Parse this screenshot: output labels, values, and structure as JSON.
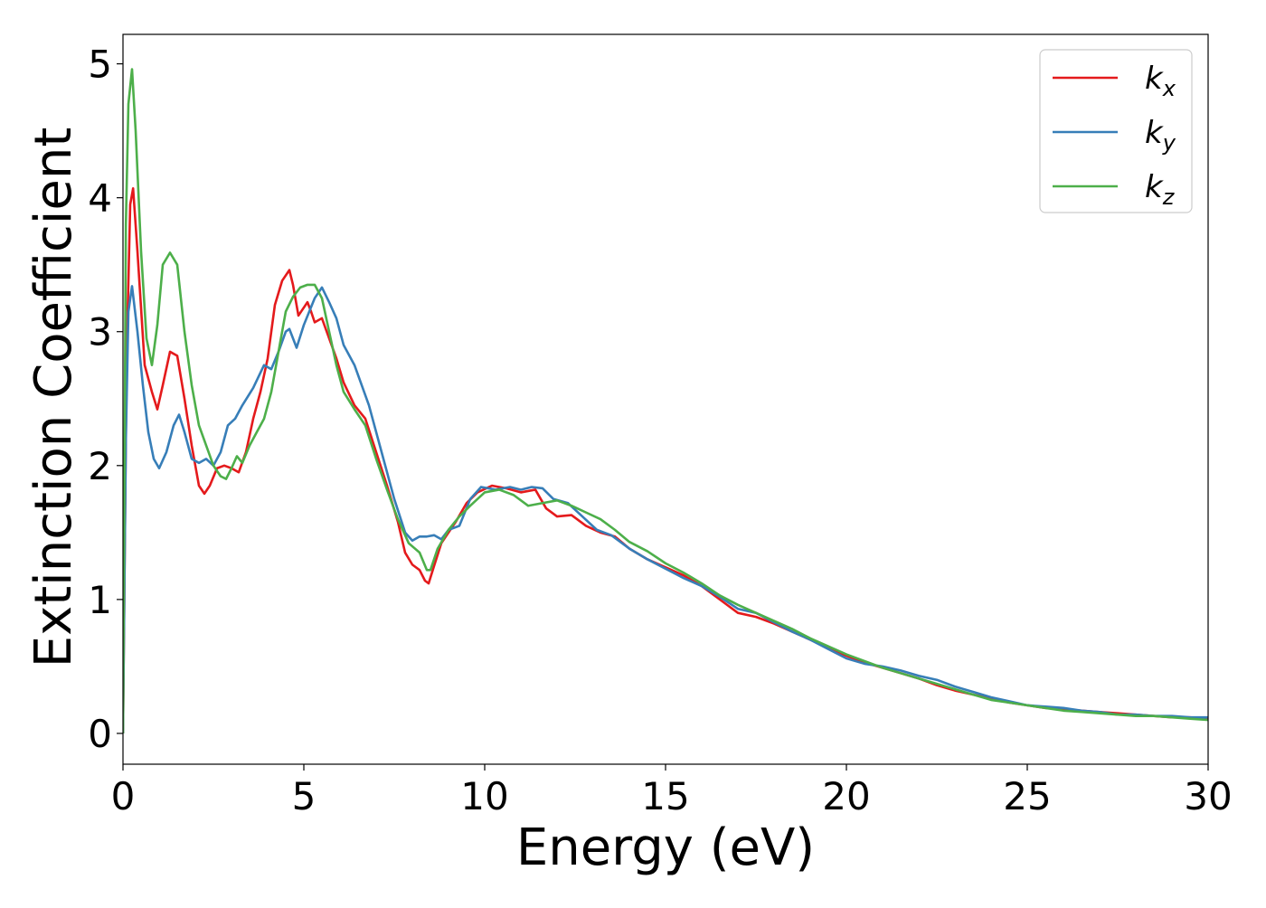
{
  "chart_data": {
    "type": "line",
    "title": "",
    "xlabel": "Energy (eV)",
    "ylabel": "Extinction Coefficient",
    "xlim": [
      0,
      30
    ],
    "ylim": [
      -0.23,
      5.22
    ],
    "xticks": [
      0,
      5,
      10,
      15,
      20,
      25,
      30
    ],
    "yticks": [
      0,
      1,
      2,
      3,
      4,
      5
    ],
    "grid": false,
    "legend": "top-right",
    "series": [
      {
        "name": "k_x",
        "label_main": "k",
        "label_sub": "x",
        "color": "#e41a1c",
        "points": [
          [
            0,
            0
          ],
          [
            0.1,
            2.8
          ],
          [
            0.2,
            3.95
          ],
          [
            0.28,
            4.07
          ],
          [
            0.4,
            3.6
          ],
          [
            0.6,
            2.75
          ],
          [
            0.8,
            2.55
          ],
          [
            0.95,
            2.42
          ],
          [
            1.1,
            2.6
          ],
          [
            1.3,
            2.85
          ],
          [
            1.5,
            2.82
          ],
          [
            1.7,
            2.5
          ],
          [
            1.9,
            2.15
          ],
          [
            2.1,
            1.85
          ],
          [
            2.25,
            1.79
          ],
          [
            2.4,
            1.85
          ],
          [
            2.6,
            1.98
          ],
          [
            2.8,
            2.0
          ],
          [
            3.0,
            1.98
          ],
          [
            3.2,
            1.95
          ],
          [
            3.4,
            2.1
          ],
          [
            3.6,
            2.35
          ],
          [
            3.8,
            2.55
          ],
          [
            4.0,
            2.8
          ],
          [
            4.2,
            3.2
          ],
          [
            4.4,
            3.38
          ],
          [
            4.6,
            3.46
          ],
          [
            4.7,
            3.35
          ],
          [
            4.85,
            3.12
          ],
          [
            5.0,
            3.18
          ],
          [
            5.1,
            3.22
          ],
          [
            5.2,
            3.15
          ],
          [
            5.3,
            3.07
          ],
          [
            5.5,
            3.1
          ],
          [
            5.7,
            2.95
          ],
          [
            5.9,
            2.8
          ],
          [
            6.1,
            2.62
          ],
          [
            6.4,
            2.45
          ],
          [
            6.7,
            2.35
          ],
          [
            7.0,
            2.1
          ],
          [
            7.3,
            1.85
          ],
          [
            7.6,
            1.58
          ],
          [
            7.8,
            1.35
          ],
          [
            8.0,
            1.26
          ],
          [
            8.2,
            1.22
          ],
          [
            8.35,
            1.14
          ],
          [
            8.45,
            1.12
          ],
          [
            8.6,
            1.25
          ],
          [
            8.8,
            1.42
          ],
          [
            9.0,
            1.5
          ],
          [
            9.2,
            1.58
          ],
          [
            9.5,
            1.72
          ],
          [
            9.8,
            1.8
          ],
          [
            10.2,
            1.85
          ],
          [
            10.6,
            1.83
          ],
          [
            11.0,
            1.8
          ],
          [
            11.4,
            1.82
          ],
          [
            11.7,
            1.68
          ],
          [
            12.0,
            1.62
          ],
          [
            12.4,
            1.63
          ],
          [
            12.8,
            1.55
          ],
          [
            13.2,
            1.5
          ],
          [
            13.6,
            1.47
          ],
          [
            14.0,
            1.38
          ],
          [
            14.5,
            1.3
          ],
          [
            15.0,
            1.24
          ],
          [
            15.5,
            1.18
          ],
          [
            16.0,
            1.1
          ],
          [
            16.5,
            1.0
          ],
          [
            17.0,
            0.9
          ],
          [
            17.5,
            0.87
          ],
          [
            18.0,
            0.82
          ],
          [
            18.5,
            0.76
          ],
          [
            19.0,
            0.7
          ],
          [
            19.5,
            0.64
          ],
          [
            20.0,
            0.58
          ],
          [
            20.5,
            0.53
          ],
          [
            21.0,
            0.49
          ],
          [
            21.5,
            0.45
          ],
          [
            22.0,
            0.41
          ],
          [
            22.5,
            0.36
          ],
          [
            23.0,
            0.32
          ],
          [
            23.5,
            0.29
          ],
          [
            24.0,
            0.26
          ],
          [
            24.5,
            0.23
          ],
          [
            25.0,
            0.21
          ],
          [
            25.5,
            0.19
          ],
          [
            26.0,
            0.18
          ],
          [
            26.5,
            0.17
          ],
          [
            27.0,
            0.16
          ],
          [
            27.5,
            0.15
          ],
          [
            28.0,
            0.14
          ],
          [
            28.5,
            0.13
          ],
          [
            29.0,
            0.12
          ],
          [
            29.5,
            0.12
          ],
          [
            30.0,
            0.11
          ]
        ]
      },
      {
        "name": "k_y",
        "label_main": "k",
        "label_sub": "y",
        "color": "#377eb8",
        "points": [
          [
            0,
            0
          ],
          [
            0.08,
            2.2
          ],
          [
            0.15,
            3.15
          ],
          [
            0.25,
            3.34
          ],
          [
            0.4,
            3.0
          ],
          [
            0.55,
            2.6
          ],
          [
            0.7,
            2.25
          ],
          [
            0.85,
            2.05
          ],
          [
            1.0,
            1.98
          ],
          [
            1.2,
            2.1
          ],
          [
            1.4,
            2.3
          ],
          [
            1.55,
            2.38
          ],
          [
            1.7,
            2.25
          ],
          [
            1.9,
            2.05
          ],
          [
            2.1,
            2.02
          ],
          [
            2.3,
            2.05
          ],
          [
            2.5,
            2.0
          ],
          [
            2.7,
            2.1
          ],
          [
            2.9,
            2.3
          ],
          [
            3.1,
            2.35
          ],
          [
            3.3,
            2.45
          ],
          [
            3.6,
            2.58
          ],
          [
            3.9,
            2.75
          ],
          [
            4.1,
            2.72
          ],
          [
            4.3,
            2.85
          ],
          [
            4.5,
            3.0
          ],
          [
            4.6,
            3.02
          ],
          [
            4.8,
            2.88
          ],
          [
            5.0,
            3.05
          ],
          [
            5.3,
            3.25
          ],
          [
            5.5,
            3.33
          ],
          [
            5.7,
            3.22
          ],
          [
            5.9,
            3.1
          ],
          [
            6.1,
            2.9
          ],
          [
            6.4,
            2.75
          ],
          [
            6.8,
            2.45
          ],
          [
            7.2,
            2.05
          ],
          [
            7.5,
            1.75
          ],
          [
            7.8,
            1.5
          ],
          [
            8.0,
            1.44
          ],
          [
            8.2,
            1.47
          ],
          [
            8.4,
            1.47
          ],
          [
            8.6,
            1.48
          ],
          [
            8.8,
            1.45
          ],
          [
            9.0,
            1.52
          ],
          [
            9.3,
            1.55
          ],
          [
            9.6,
            1.75
          ],
          [
            9.9,
            1.84
          ],
          [
            10.3,
            1.82
          ],
          [
            10.7,
            1.84
          ],
          [
            11.0,
            1.82
          ],
          [
            11.3,
            1.84
          ],
          [
            11.6,
            1.83
          ],
          [
            11.9,
            1.75
          ],
          [
            12.3,
            1.72
          ],
          [
            12.7,
            1.62
          ],
          [
            13.1,
            1.52
          ],
          [
            13.5,
            1.48
          ],
          [
            14.0,
            1.38
          ],
          [
            14.5,
            1.3
          ],
          [
            15.0,
            1.23
          ],
          [
            15.5,
            1.16
          ],
          [
            16.0,
            1.1
          ],
          [
            16.5,
            1.02
          ],
          [
            17.0,
            0.93
          ],
          [
            17.5,
            0.9
          ],
          [
            18.0,
            0.83
          ],
          [
            18.5,
            0.76
          ],
          [
            19.0,
            0.7
          ],
          [
            19.5,
            0.63
          ],
          [
            20.0,
            0.56
          ],
          [
            20.5,
            0.52
          ],
          [
            21.0,
            0.5
          ],
          [
            21.5,
            0.47
          ],
          [
            22.0,
            0.43
          ],
          [
            22.5,
            0.4
          ],
          [
            23.0,
            0.35
          ],
          [
            23.5,
            0.31
          ],
          [
            24.0,
            0.27
          ],
          [
            24.5,
            0.24
          ],
          [
            25.0,
            0.21
          ],
          [
            25.5,
            0.2
          ],
          [
            26.0,
            0.19
          ],
          [
            26.5,
            0.17
          ],
          [
            27.0,
            0.16
          ],
          [
            27.5,
            0.14
          ],
          [
            28.0,
            0.14
          ],
          [
            28.5,
            0.13
          ],
          [
            29.0,
            0.13
          ],
          [
            29.5,
            0.12
          ],
          [
            30.0,
            0.12
          ]
        ]
      },
      {
        "name": "k_z",
        "label_main": "k",
        "label_sub": "z",
        "color": "#4daf4a",
        "points": [
          [
            0,
            0
          ],
          [
            0.08,
            3.8
          ],
          [
            0.15,
            4.7
          ],
          [
            0.25,
            4.96
          ],
          [
            0.35,
            4.5
          ],
          [
            0.5,
            3.6
          ],
          [
            0.65,
            2.95
          ],
          [
            0.8,
            2.75
          ],
          [
            0.95,
            3.05
          ],
          [
            1.1,
            3.5
          ],
          [
            1.3,
            3.59
          ],
          [
            1.5,
            3.5
          ],
          [
            1.7,
            3.0
          ],
          [
            1.9,
            2.6
          ],
          [
            2.1,
            2.3
          ],
          [
            2.3,
            2.15
          ],
          [
            2.5,
            2.0
          ],
          [
            2.7,
            1.92
          ],
          [
            2.85,
            1.9
          ],
          [
            3.0,
            1.98
          ],
          [
            3.15,
            2.07
          ],
          [
            3.3,
            2.02
          ],
          [
            3.5,
            2.15
          ],
          [
            3.7,
            2.25
          ],
          [
            3.9,
            2.35
          ],
          [
            4.1,
            2.55
          ],
          [
            4.3,
            2.85
          ],
          [
            4.5,
            3.15
          ],
          [
            4.7,
            3.26
          ],
          [
            4.9,
            3.33
          ],
          [
            5.1,
            3.35
          ],
          [
            5.3,
            3.35
          ],
          [
            5.5,
            3.25
          ],
          [
            5.7,
            3.0
          ],
          [
            5.9,
            2.75
          ],
          [
            6.1,
            2.55
          ],
          [
            6.4,
            2.42
          ],
          [
            6.7,
            2.3
          ],
          [
            7.0,
            2.05
          ],
          [
            7.3,
            1.82
          ],
          [
            7.6,
            1.6
          ],
          [
            7.9,
            1.42
          ],
          [
            8.2,
            1.35
          ],
          [
            8.4,
            1.22
          ],
          [
            8.5,
            1.22
          ],
          [
            8.7,
            1.38
          ],
          [
            9.0,
            1.52
          ],
          [
            9.3,
            1.62
          ],
          [
            9.6,
            1.7
          ],
          [
            10.0,
            1.8
          ],
          [
            10.4,
            1.82
          ],
          [
            10.8,
            1.78
          ],
          [
            11.2,
            1.7
          ],
          [
            11.6,
            1.72
          ],
          [
            12.0,
            1.74
          ],
          [
            12.4,
            1.7
          ],
          [
            12.8,
            1.65
          ],
          [
            13.2,
            1.6
          ],
          [
            13.6,
            1.52
          ],
          [
            14.0,
            1.43
          ],
          [
            14.5,
            1.36
          ],
          [
            15.0,
            1.27
          ],
          [
            15.5,
            1.2
          ],
          [
            16.0,
            1.12
          ],
          [
            16.5,
            1.03
          ],
          [
            17.0,
            0.96
          ],
          [
            17.5,
            0.9
          ],
          [
            18.0,
            0.84
          ],
          [
            18.5,
            0.78
          ],
          [
            19.0,
            0.71
          ],
          [
            19.5,
            0.65
          ],
          [
            20.0,
            0.59
          ],
          [
            20.5,
            0.54
          ],
          [
            21.0,
            0.49
          ],
          [
            21.5,
            0.45
          ],
          [
            22.0,
            0.41
          ],
          [
            22.5,
            0.37
          ],
          [
            23.0,
            0.33
          ],
          [
            23.5,
            0.29
          ],
          [
            24.0,
            0.25
          ],
          [
            24.5,
            0.23
          ],
          [
            25.0,
            0.21
          ],
          [
            25.5,
            0.19
          ],
          [
            26.0,
            0.17
          ],
          [
            26.5,
            0.16
          ],
          [
            27.0,
            0.15
          ],
          [
            27.5,
            0.14
          ],
          [
            28.0,
            0.13
          ],
          [
            28.5,
            0.13
          ],
          [
            29.0,
            0.12
          ],
          [
            29.5,
            0.11
          ],
          [
            30.0,
            0.1
          ]
        ]
      }
    ]
  }
}
